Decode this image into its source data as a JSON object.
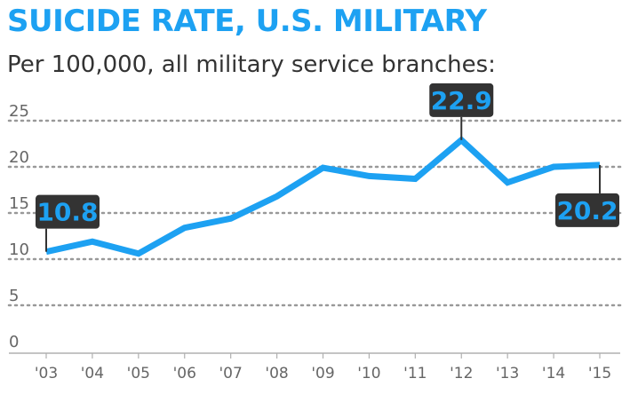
{
  "header": {
    "title": "SUICIDE RATE, U.S. MILITARY",
    "subtitle": "Per 100,000, all military service branches:"
  },
  "colors": {
    "line": "#1da1f2",
    "title": "#1da1f2",
    "callout_bg": "#333333",
    "grid": "#999999"
  },
  "chart_data": {
    "type": "line",
    "title": "SUICIDE RATE, U.S. MILITARY",
    "subtitle": "Per 100,000, all military service branches:",
    "categories": [
      "'03",
      "'04",
      "'05",
      "'06",
      "'07",
      "'08",
      "'09",
      "'10",
      "'11",
      "'12",
      "'13",
      "'14",
      "'15"
    ],
    "series": [
      {
        "values": [
          10.8,
          11.9,
          10.6,
          13.4,
          14.4,
          16.8,
          19.9,
          19.0,
          18.7,
          22.9,
          18.3,
          20.0,
          20.2
        ]
      }
    ],
    "ylim": [
      0,
      25
    ],
    "yticks": [
      0,
      5,
      10,
      15,
      20,
      25
    ],
    "grid": true,
    "gridstyle": "dotted",
    "annotations": [
      {
        "index": 0,
        "label": "10.8",
        "position": "above"
      },
      {
        "index": 9,
        "label": "22.9",
        "position": "above"
      },
      {
        "index": 12,
        "label": "20.2",
        "position": "below"
      }
    ]
  }
}
